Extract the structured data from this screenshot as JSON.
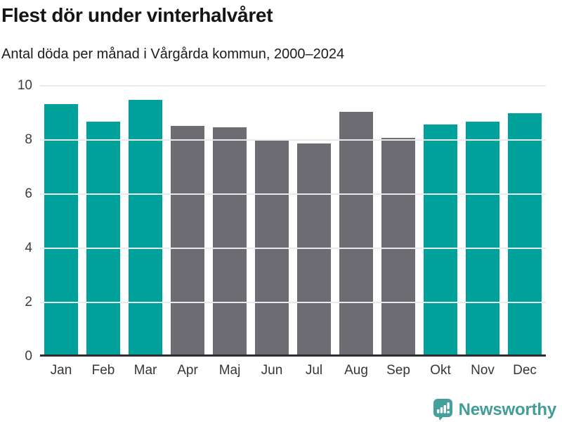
{
  "header": {
    "title": "Flest dör under vinterhalvåret",
    "subtitle": "Antal döda per månad i Vårgårda kommun, 2000–2024"
  },
  "chart_data": {
    "type": "bar",
    "title": "Flest dör under vinterhalvåret",
    "subtitle": "Antal döda per månad i Vårgårda kommun, 2000–2024",
    "categories": [
      "Jan",
      "Feb",
      "Mar",
      "Apr",
      "Maj",
      "Jun",
      "Jul",
      "Aug",
      "Sep",
      "Okt",
      "Nov",
      "Dec"
    ],
    "values": [
      9.25,
      8.6,
      9.4,
      8.45,
      8.4,
      7.95,
      7.8,
      8.95,
      8.0,
      8.5,
      8.6,
      8.9
    ],
    "highlighted": [
      true,
      true,
      true,
      false,
      false,
      false,
      false,
      false,
      false,
      true,
      true,
      true
    ],
    "xlabel": "",
    "ylabel": "",
    "ylim": [
      0,
      10
    ],
    "yticks": [
      0,
      2,
      4,
      6,
      8,
      10
    ],
    "grid": "horizontal",
    "legend": "none",
    "colors": {
      "highlight_bar": "#00a19a",
      "base_bar": "#6c6c72",
      "gridline": "#e9e9e9",
      "axis_line": "#2d2d33",
      "label_text": "#3d3d3d"
    }
  },
  "footer": {
    "brand": "Newsworthy",
    "brand_color": "#429d99"
  }
}
